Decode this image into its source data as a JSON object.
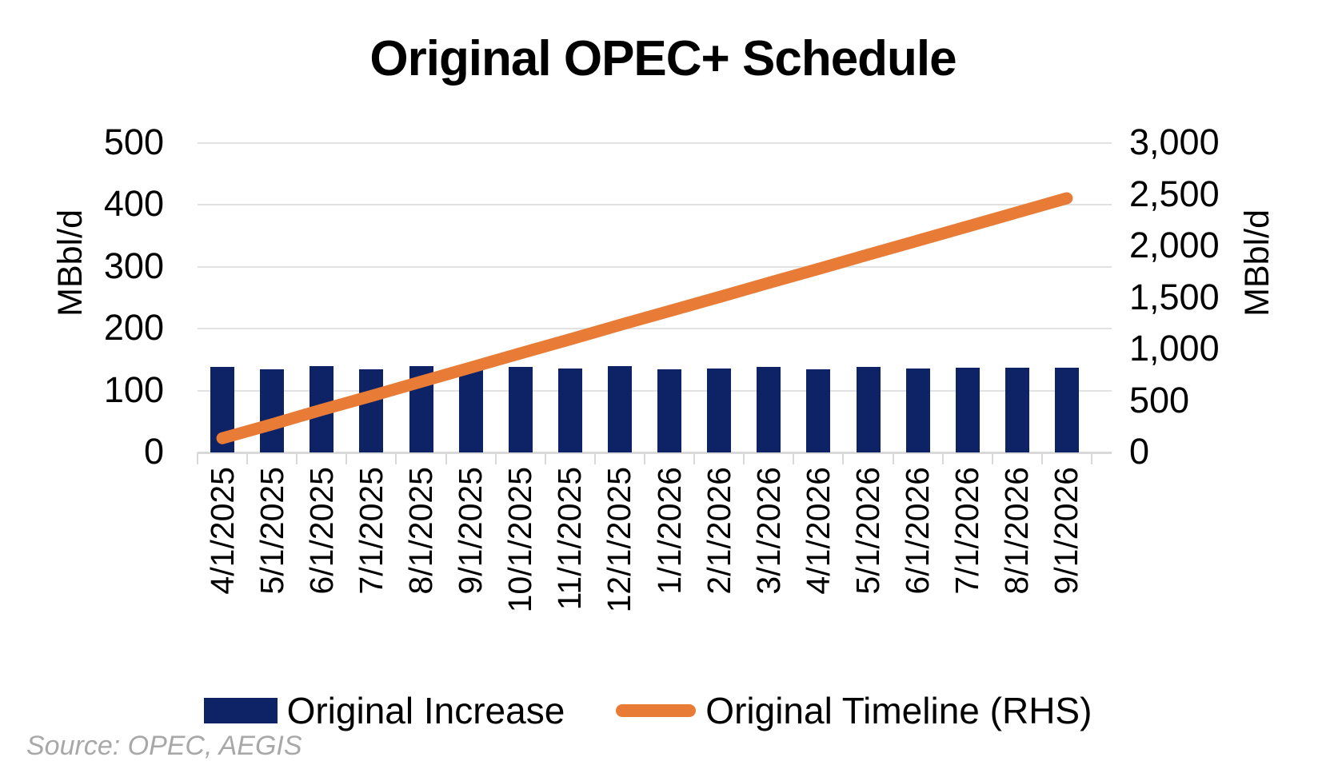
{
  "title": "Original OPEC+ Schedule",
  "source_note": "Source: OPEC, AEGIS",
  "colors": {
    "bar_navy": "#0d2365",
    "line_orange": "#e87c37",
    "gridline": "#e2e2e2",
    "axis_line": "#d9d9d9",
    "text": "#000000",
    "source_text": "#a8a8a8"
  },
  "left_axis_label": "MBbl/d",
  "right_axis_label": "MBbl/d",
  "legend": {
    "bar_label": "Original Increase",
    "line_label": "Original Timeline (RHS)"
  },
  "chart_data": {
    "type": "bar",
    "subtype": "combo-bar-line",
    "title": "Original OPEC+ Schedule",
    "categories": [
      "4/1/2025",
      "5/1/2025",
      "6/1/2025",
      "7/1/2025",
      "8/1/2025",
      "9/1/2025",
      "10/1/2025",
      "11/1/2025",
      "12/1/2025",
      "1/1/2026",
      "2/1/2026",
      "3/1/2026",
      "4/1/2026",
      "5/1/2026",
      "6/1/2026",
      "7/1/2026",
      "8/1/2026",
      "9/1/2026"
    ],
    "series": [
      {
        "name": "Original Increase",
        "type": "bar",
        "axis": "left",
        "values": [
          138,
          135,
          140,
          134,
          139,
          137,
          138,
          136,
          139,
          135,
          136,
          138,
          135,
          138,
          136,
          137,
          137,
          137
        ]
      },
      {
        "name": "Original Timeline (RHS)",
        "type": "line",
        "axis": "right",
        "values": [
          138,
          273,
          413,
          547,
          686,
          823,
          961,
          1097,
          1236,
          1371,
          1507,
          1645,
          1780,
          1918,
          2054,
          2191,
          2328,
          2465
        ]
      }
    ],
    "left_axis": {
      "label": "MBbl/d",
      "min": 0,
      "max": 500,
      "ticks": [
        0,
        100,
        200,
        300,
        400,
        500
      ],
      "tick_labels": [
        "0",
        "100",
        "200",
        "300",
        "400",
        "500"
      ]
    },
    "right_axis": {
      "label": "MBbl/d",
      "min": 0,
      "max": 3000,
      "ticks": [
        0,
        500,
        1000,
        1500,
        2000,
        2500,
        3000
      ],
      "tick_labels": [
        "0",
        "500",
        "1,000",
        "1,500",
        "2,000",
        "2,500",
        "3,000"
      ]
    },
    "grid": "horizontal-only",
    "legend_position": "bottom",
    "xlabel": "",
    "ylabel_left": "MBbl/d",
    "ylabel_right": "MBbl/d"
  }
}
